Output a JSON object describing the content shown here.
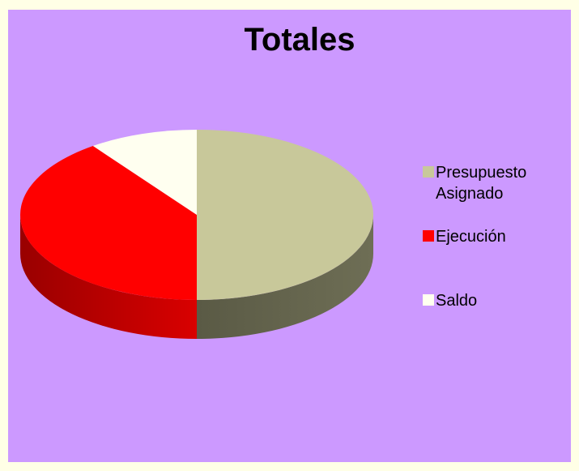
{
  "chart_data": {
    "type": "pie3d",
    "title": "Totales",
    "categories": [
      "Presupuesto Asignado",
      "Ejecución",
      "Saldo"
    ],
    "values": [
      50,
      40,
      10
    ],
    "colors": [
      "#c8c89a",
      "#ff0000",
      "#fffff0"
    ],
    "legend": "right"
  }
}
